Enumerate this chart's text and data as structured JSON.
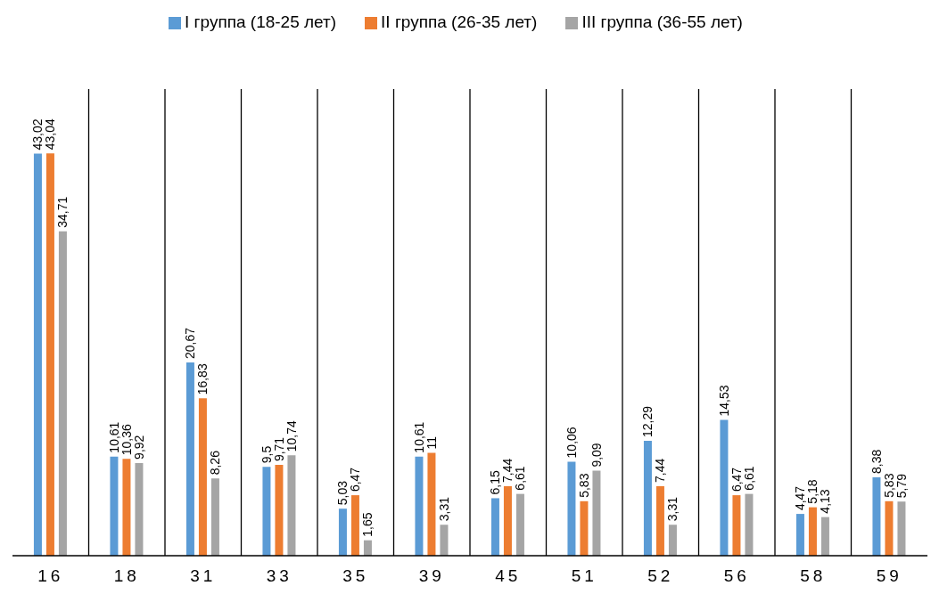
{
  "chart_data": {
    "type": "bar",
    "categories": [
      "16",
      "18",
      "31",
      "33",
      "35",
      "39",
      "45",
      "51",
      "52",
      "56",
      "58",
      "59"
    ],
    "series": [
      {
        "name": "I группа (18-25 лет)",
        "color": "#5b9bd5",
        "values": [
          43.02,
          10.61,
          20.67,
          9.5,
          5.03,
          10.61,
          6.15,
          10.06,
          12.29,
          14.53,
          4.47,
          8.38
        ],
        "value_labels": [
          "43,02",
          "10,61",
          "20,67",
          "9,5",
          "5,03",
          "10,61",
          "6,15",
          "10,06",
          "12,29",
          "14,53",
          "4,47",
          "8,38"
        ]
      },
      {
        "name": "II группа (26-35 лет)",
        "color": "#ed7d31",
        "values": [
          43.04,
          10.36,
          16.83,
          9.71,
          6.47,
          11,
          7.44,
          5.83,
          7.44,
          6.47,
          5.18,
          5.83
        ],
        "value_labels": [
          "43,04",
          "10,36",
          "16,83",
          "9,71",
          "6,47",
          "11",
          "7,44",
          "5,83",
          "7,44",
          "6,47",
          "5,18",
          "5,83"
        ]
      },
      {
        "name": "III группа (36-55 лет)",
        "color": "#a5a5a5",
        "values": [
          34.71,
          9.92,
          8.26,
          10.74,
          1.65,
          3.31,
          6.61,
          9.09,
          3.31,
          6.61,
          4.13,
          5.79
        ],
        "value_labels": [
          "34,71",
          "9,92",
          "8,26",
          "10,74",
          "1,65",
          "3,31",
          "6,61",
          "9,09",
          "3,31",
          "6,61",
          "4,13",
          "5,79"
        ]
      }
    ],
    "grid": "x",
    "legend": "top",
    "tick_labels": "x"
  }
}
